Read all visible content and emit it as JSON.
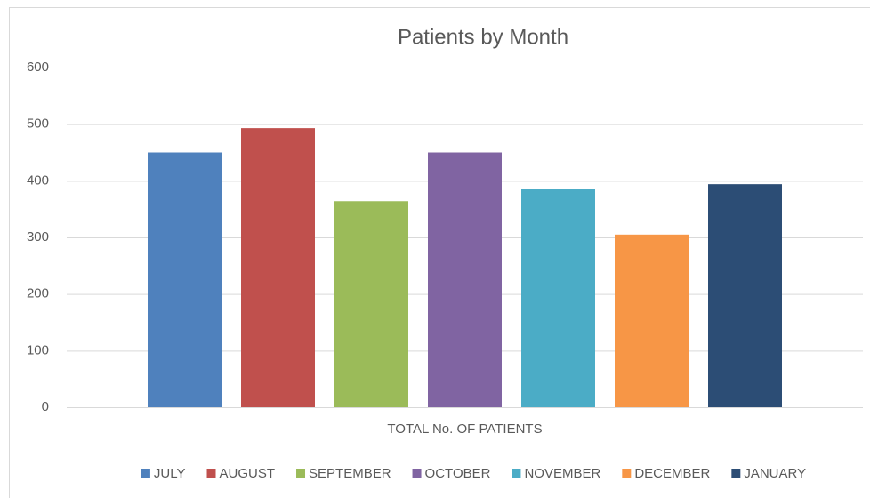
{
  "chart_data": {
    "type": "bar",
    "title": "Patients by Month",
    "categories": [
      "TOTAL No. OF PATIENTS"
    ],
    "series": [
      {
        "name": "JULY",
        "color": "#4f81bd",
        "values": [
          450
        ]
      },
      {
        "name": "AUGUST",
        "color": "#c0504d",
        "values": [
          493
        ]
      },
      {
        "name": "SEPTEMBER",
        "color": "#9bbb59",
        "values": [
          364
        ]
      },
      {
        "name": "OCTOBER",
        "color": "#8064a2",
        "values": [
          450
        ]
      },
      {
        "name": "NOVEMBER",
        "color": "#4bacc6",
        "values": [
          386
        ]
      },
      {
        "name": "DECEMBER",
        "color": "#f79646",
        "values": [
          305
        ]
      },
      {
        "name": "JANUARY",
        "color": "#2c4d75",
        "values": [
          394
        ]
      }
    ],
    "ylim": [
      0,
      600
    ],
    "yticks": [
      0,
      100,
      200,
      300,
      400,
      500,
      600
    ],
    "grid": true,
    "legend": "bottom"
  }
}
